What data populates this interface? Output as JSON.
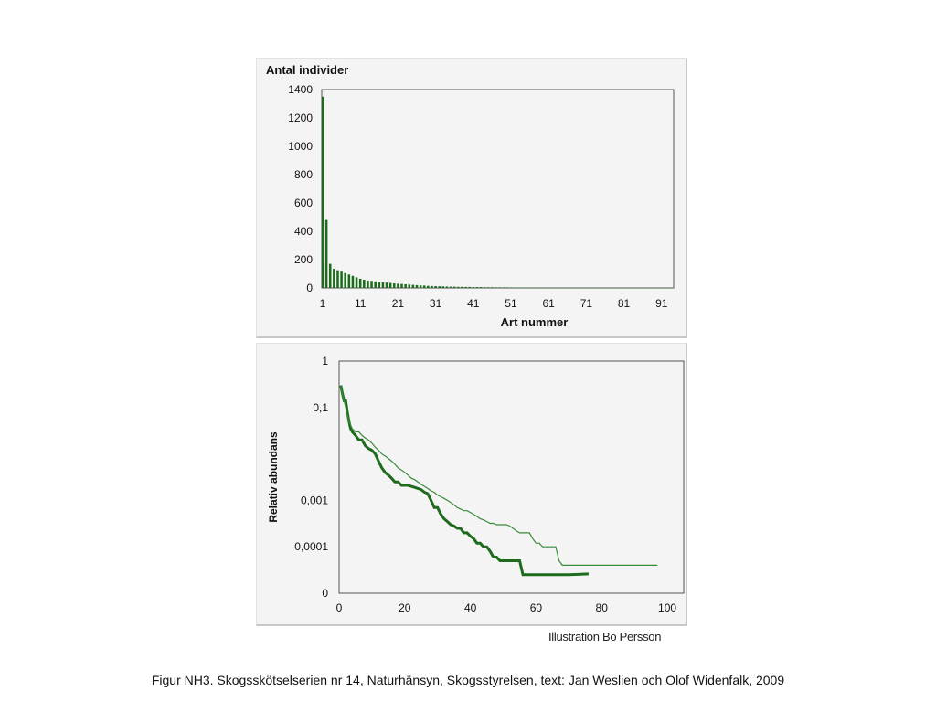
{
  "chart_data": [
    {
      "type": "bar",
      "title": "Antal individer",
      "xlabel": "Art nummer",
      "ylabel": "",
      "ylim": [
        0,
        1400
      ],
      "xlim": [
        1,
        93
      ],
      "y_ticks": [
        "0",
        "200",
        "400",
        "600",
        "800",
        "1000",
        "1200",
        "1400"
      ],
      "y_tick_values": [
        0,
        200,
        400,
        600,
        800,
        1000,
        1200,
        1400
      ],
      "x_ticks": [
        "1",
        "11",
        "21",
        "31",
        "41",
        "51",
        "61",
        "71",
        "81",
        "91"
      ],
      "x_tick_values": [
        1,
        11,
        21,
        31,
        41,
        51,
        61,
        71,
        81,
        91
      ],
      "color": "#1e6b1e",
      "grid": false,
      "categories": [
        1,
        2,
        3,
        4,
        5,
        6,
        7,
        8,
        9,
        10,
        11,
        12,
        13,
        14,
        15,
        16,
        17,
        18,
        19,
        20,
        21,
        22,
        23,
        24,
        25,
        26,
        27,
        28,
        29,
        30,
        31,
        32,
        33,
        34,
        35,
        36,
        37,
        38,
        39,
        40,
        41,
        42,
        43,
        44,
        45,
        46,
        47,
        48,
        49,
        50,
        51,
        52,
        53,
        54,
        55,
        56,
        57,
        58,
        59,
        60,
        61,
        62,
        63,
        64,
        65,
        66,
        67,
        68,
        69,
        70,
        71,
        72,
        73,
        74,
        75,
        76,
        77,
        78,
        79,
        80,
        81,
        82,
        83,
        84,
        85,
        86,
        87,
        88,
        89,
        90,
        91,
        92,
        93
      ],
      "values": [
        1350,
        480,
        170,
        135,
        125,
        115,
        105,
        95,
        85,
        75,
        65,
        58,
        52,
        50,
        46,
        42,
        40,
        38,
        35,
        32,
        30,
        28,
        26,
        24,
        22,
        20,
        18,
        17,
        15,
        14,
        13,
        12,
        11,
        10,
        9,
        9,
        8,
        8,
        7,
        7,
        6,
        6,
        6,
        5,
        5,
        5,
        4,
        4,
        4,
        4,
        3,
        3,
        3,
        3,
        3,
        3,
        2,
        2,
        2,
        2,
        2,
        2,
        2,
        2,
        2,
        2,
        2,
        2,
        2,
        2,
        2,
        2,
        2,
        2,
        1,
        1,
        1,
        1,
        1,
        1,
        1,
        1,
        1,
        1,
        1,
        1,
        1,
        1,
        1,
        1,
        1,
        1,
        1
      ]
    },
    {
      "type": "line",
      "title": "",
      "xlabel": "",
      "ylabel": "Relativ abundans",
      "xlim": [
        0,
        105
      ],
      "y_scale": "log",
      "ylim": [
        1e-05,
        1
      ],
      "y_ticks": [
        "1",
        "0,1",
        "0,001",
        "0,0001",
        "0"
      ],
      "y_tick_values": [
        1,
        0.1,
        0.001,
        0.0001,
        1e-05
      ],
      "x_ticks": [
        "0",
        "20",
        "40",
        "60",
        "80",
        "100"
      ],
      "x_tick_values": [
        0,
        20,
        40,
        60,
        80,
        100
      ],
      "grid": false,
      "series": [
        {
          "name": "",
          "color": "#1e6b1e",
          "width": 3,
          "x": [
            0.5,
            1,
            1.5,
            2,
            2.5,
            3,
            3.5,
            4,
            5,
            6,
            7,
            8,
            9,
            10,
            11,
            12,
            13,
            14,
            15,
            16,
            17,
            18,
            19,
            20,
            21,
            22,
            23,
            24,
            25,
            26,
            27,
            28,
            29,
            30,
            31,
            32,
            33,
            34,
            35,
            36,
            37,
            38,
            39,
            40,
            41,
            42,
            43,
            44,
            45,
            46,
            47,
            48,
            49,
            50,
            51,
            52,
            53,
            54,
            55,
            56,
            60,
            65,
            70,
            76
          ],
          "y": [
            0.3,
            0.2,
            0.14,
            0.14,
            0.08,
            0.05,
            0.035,
            0.03,
            0.025,
            0.02,
            0.02,
            0.015,
            0.013,
            0.012,
            0.01,
            0.007,
            0.005,
            0.004,
            0.0035,
            0.003,
            0.0025,
            0.0025,
            0.0021,
            0.0021,
            0.0021,
            0.002,
            0.0019,
            0.0018,
            0.0017,
            0.0015,
            0.0014,
            0.001,
            0.0007,
            0.0007,
            0.0005,
            0.0004,
            0.00035,
            0.0003,
            0.00028,
            0.00025,
            0.00025,
            0.0002,
            0.0002,
            0.00017,
            0.00015,
            0.00012,
            0.00012,
            0.0001,
            0.0001,
            8e-05,
            6e-05,
            6e-05,
            5e-05,
            5e-05,
            5e-05,
            5e-05,
            5e-05,
            5e-05,
            5e-05,
            2.5e-05,
            2.5e-05,
            2.5e-05,
            2.5e-05,
            2.6e-05
          ]
        },
        {
          "name": "",
          "color": "#3a8a3a",
          "width": 1.2,
          "x": [
            0.5,
            1,
            1.5,
            2,
            2.5,
            3,
            4,
            5,
            6,
            7,
            8,
            9,
            10,
            11,
            12,
            13,
            14,
            15,
            16,
            17,
            18,
            19,
            20,
            21,
            22,
            23,
            24,
            25,
            26,
            27,
            28,
            29,
            30,
            31,
            32,
            33,
            34,
            35,
            36,
            37,
            38,
            39,
            40,
            41,
            42,
            43,
            44,
            45,
            46,
            47,
            48,
            49,
            50,
            51,
            52,
            53,
            54,
            55,
            56,
            57,
            58,
            59,
            60,
            61,
            62,
            63,
            64,
            65,
            66,
            67,
            68,
            69,
            70,
            71,
            72,
            73,
            74,
            75,
            76,
            77,
            78,
            79,
            80,
            85,
            90,
            95,
            97
          ],
          "y": [
            0.3,
            0.2,
            0.14,
            0.1,
            0.07,
            0.05,
            0.035,
            0.03,
            0.03,
            0.025,
            0.022,
            0.02,
            0.017,
            0.014,
            0.012,
            0.01,
            0.009,
            0.008,
            0.007,
            0.006,
            0.005,
            0.0045,
            0.004,
            0.0035,
            0.003,
            0.0028,
            0.0025,
            0.0022,
            0.002,
            0.0018,
            0.0016,
            0.0015,
            0.0013,
            0.0012,
            0.0011,
            0.001,
            0.0009,
            0.0008,
            0.0007,
            0.00065,
            0.0006,
            0.0006,
            0.00055,
            0.0005,
            0.00045,
            0.0004,
            0.00038,
            0.00035,
            0.00032,
            0.00032,
            0.0003,
            0.0003,
            0.0003,
            0.0003,
            0.00028,
            0.00025,
            0.00022,
            0.0002,
            0.0002,
            0.0002,
            0.0002,
            0.00015,
            0.00012,
            0.00012,
            0.0001,
            0.0001,
            0.0001,
            0.0001,
            0.0001,
            5e-05,
            4e-05,
            4e-05,
            4e-05,
            4e-05,
            4e-05,
            4e-05,
            4e-05,
            4e-05,
            4e-05,
            4e-05,
            4e-05,
            4e-05,
            4e-05,
            4e-05,
            4e-05,
            4e-05,
            4e-05
          ]
        }
      ]
    }
  ],
  "credit": "Illustration Bo Persson",
  "caption": "Figur  NH3. Skogsskötselserien nr 14, Naturhänsyn, Skogsstyrelsen, text: Jan Weslien och Olof Widenfalk, 2009"
}
